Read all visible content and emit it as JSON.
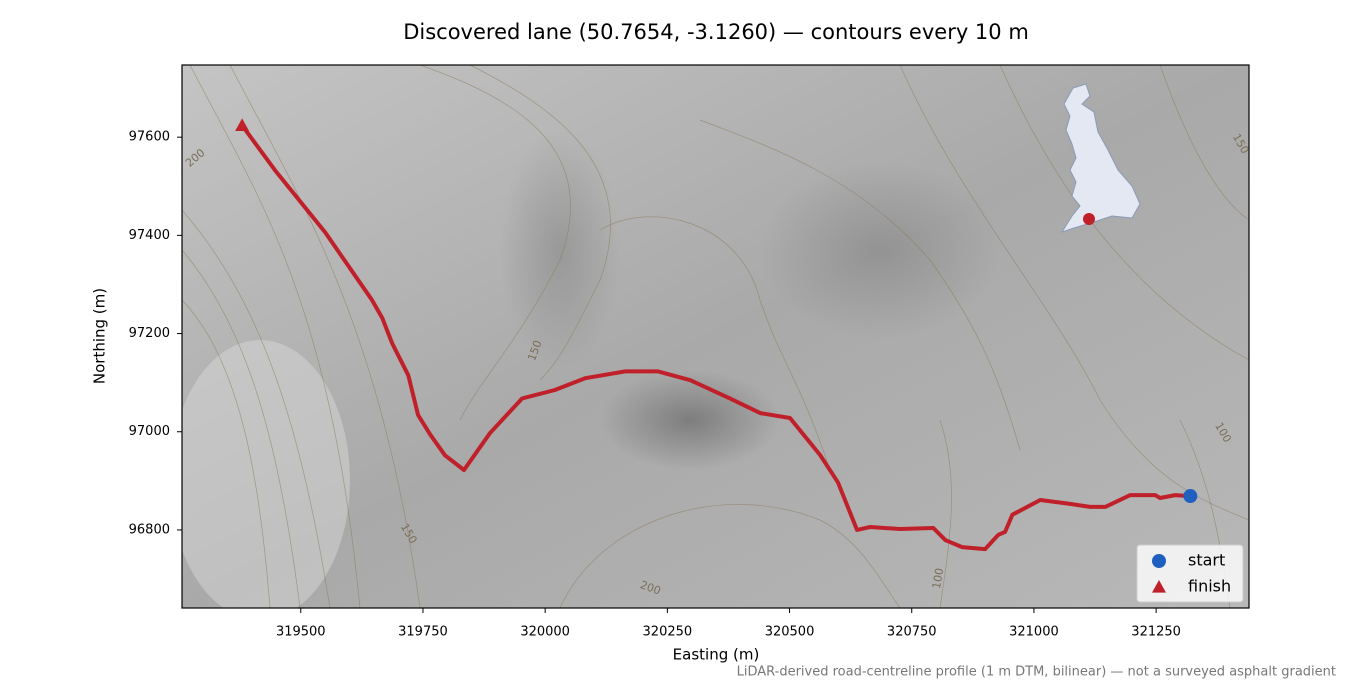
{
  "chart_data": {
    "type": "line",
    "title": "Discovered lane (50.7654, -3.1260) — contours every 10 m",
    "x_label": "Easting (m)",
    "y_label": "Northing (m)",
    "footnote": "LiDAR-derived road-centreline profile (1 m DTM, bilinear) — not a surveyed asphalt gradient",
    "color": "#c0202a",
    "x": [
      319380,
      319447,
      319550,
      319646,
      319667,
      319687,
      319720,
      319740,
      319765,
      319795,
      319834,
      319887,
      319953,
      320020,
      320082,
      320164,
      320231,
      320297,
      320378,
      320440,
      320501,
      320563,
      320599,
      320638,
      320665,
      320726,
      320794,
      320819,
      320853,
      320900,
      320927,
      320941,
      320956,
      321013,
      321074,
      321115,
      321146,
      321197,
      321248,
      321258,
      321289,
      321320
    ],
    "values": [
      97624,
      97533,
      97406,
      97268,
      97231,
      97180,
      97115,
      97034,
      96994,
      96952,
      96922,
      96997,
      97068,
      97085,
      97109,
      97123,
      97123,
      97105,
      97068,
      97038,
      97028,
      96952,
      96897,
      96800,
      96806,
      96802,
      96804,
      96779,
      96765,
      96761,
      96790,
      96796,
      96831,
      96861,
      96853,
      96847,
      96847,
      96871,
      96871,
      96865,
      96871,
      96869
    ],
    "markers": [
      {
        "name": "start",
        "x": 321320,
        "y": 96869,
        "color": "#1f5fbf",
        "marker": "circle"
      },
      {
        "name": "finish",
        "x": 319380,
        "y": 97624,
        "color": "#c0202a",
        "marker": "triangle"
      }
    ],
    "contour_labels": [
      {
        "level": 200,
        "x": 319285,
        "y": 97557
      },
      {
        "level": 150,
        "x": 319980,
        "y": 97165
      },
      {
        "level": 150,
        "x": 319720,
        "y": 96792
      },
      {
        "level": 100,
        "x": 319580,
        "y": 96620
      },
      {
        "level": 200,
        "x": 320215,
        "y": 96681
      },
      {
        "level": 100,
        "x": 320805,
        "y": 96701
      },
      {
        "level": 100,
        "x": 321386,
        "y": 96998
      },
      {
        "level": 150,
        "x": 321422,
        "y": 97586
      }
    ],
    "xlim": [
      319257,
      321440
    ],
    "ylim": [
      96641,
      97747
    ],
    "xticks": [
      319500,
      319750,
      320000,
      320250,
      320500,
      320750,
      321000,
      321250
    ],
    "yticks": [
      96800,
      97000,
      97200,
      97400,
      97600
    ],
    "legend": "lower right"
  }
}
